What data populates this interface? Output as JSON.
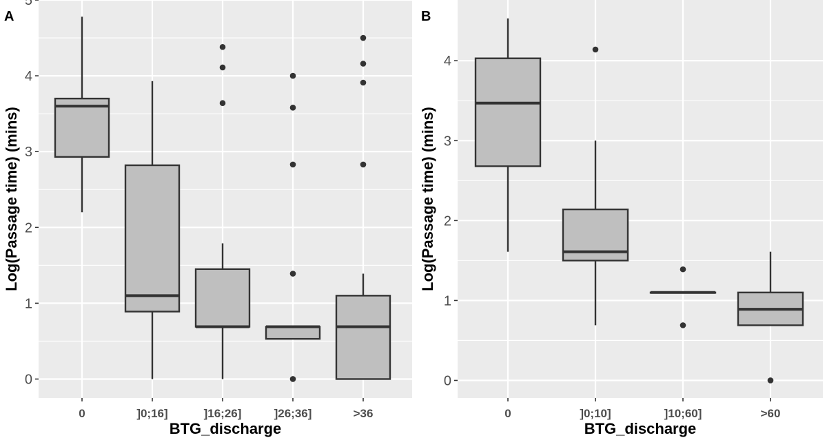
{
  "chart_data": [
    {
      "type": "boxplot",
      "panel_label": "A",
      "xlabel": "BTG_discharge",
      "ylabel": "Log(Passage time) (mins)",
      "ylim": [
        -0.25,
        5
      ],
      "y_ticks": [
        0,
        1,
        2,
        3,
        4,
        5
      ],
      "grid": true,
      "categories": [
        "0",
        "]0;16]",
        "]16;26]",
        "]26;36]",
        ">36"
      ],
      "boxes": [
        {
          "category": "0",
          "whisker_low": 2.2,
          "q1": 2.93,
          "median": 3.6,
          "q3": 3.7,
          "whisker_high": 4.78,
          "outliers": []
        },
        {
          "category": "]0;16]",
          "whisker_low": 0.0,
          "q1": 0.89,
          "median": 1.1,
          "q3": 2.82,
          "whisker_high": 3.93,
          "outliers": []
        },
        {
          "category": "]16;26]",
          "whisker_low": 0.0,
          "q1": 0.69,
          "median": 0.69,
          "q3": 1.45,
          "whisker_high": 1.79,
          "outliers": [
            3.64,
            4.11,
            4.38
          ]
        },
        {
          "category": "]26;36]",
          "whisker_low": 0.53,
          "q1": 0.53,
          "median": 0.69,
          "q3": 0.69,
          "whisker_high": 0.69,
          "outliers": [
            0.0,
            1.39,
            2.83,
            3.58,
            4.0
          ]
        },
        {
          "category": ">36",
          "whisker_low": 0.0,
          "q1": 0.0,
          "median": 0.69,
          "q3": 1.1,
          "whisker_high": 1.39,
          "outliers": [
            2.83,
            3.91,
            4.16,
            4.5
          ]
        }
      ]
    },
    {
      "type": "boxplot",
      "panel_label": "B",
      "xlabel": "BTG_discharge",
      "ylabel": "Log(Passage time) (mins)",
      "ylim": [
        -0.22,
        4.76
      ],
      "y_ticks": [
        0,
        1,
        2,
        3,
        4
      ],
      "grid": true,
      "categories": [
        "0",
        "]0;10]",
        "]10;60]",
        ">60"
      ],
      "boxes": [
        {
          "category": "0",
          "whisker_low": 1.61,
          "q1": 2.68,
          "median": 3.47,
          "q3": 4.03,
          "whisker_high": 4.53,
          "outliers": []
        },
        {
          "category": "]0;10]",
          "whisker_low": 0.69,
          "q1": 1.5,
          "median": 1.61,
          "q3": 2.14,
          "whisker_high": 3.0,
          "outliers": [
            4.14
          ]
        },
        {
          "category": "]10;60]",
          "whisker_low": 1.1,
          "q1": 1.1,
          "median": 1.1,
          "q3": 1.1,
          "whisker_high": 1.1,
          "outliers": [
            0.69,
            1.39
          ]
        },
        {
          "category": ">60",
          "whisker_low": 0.69,
          "q1": 0.69,
          "median": 0.89,
          "q3": 1.1,
          "whisker_high": 1.61,
          "outliers": [
            0.0
          ]
        }
      ]
    }
  ]
}
